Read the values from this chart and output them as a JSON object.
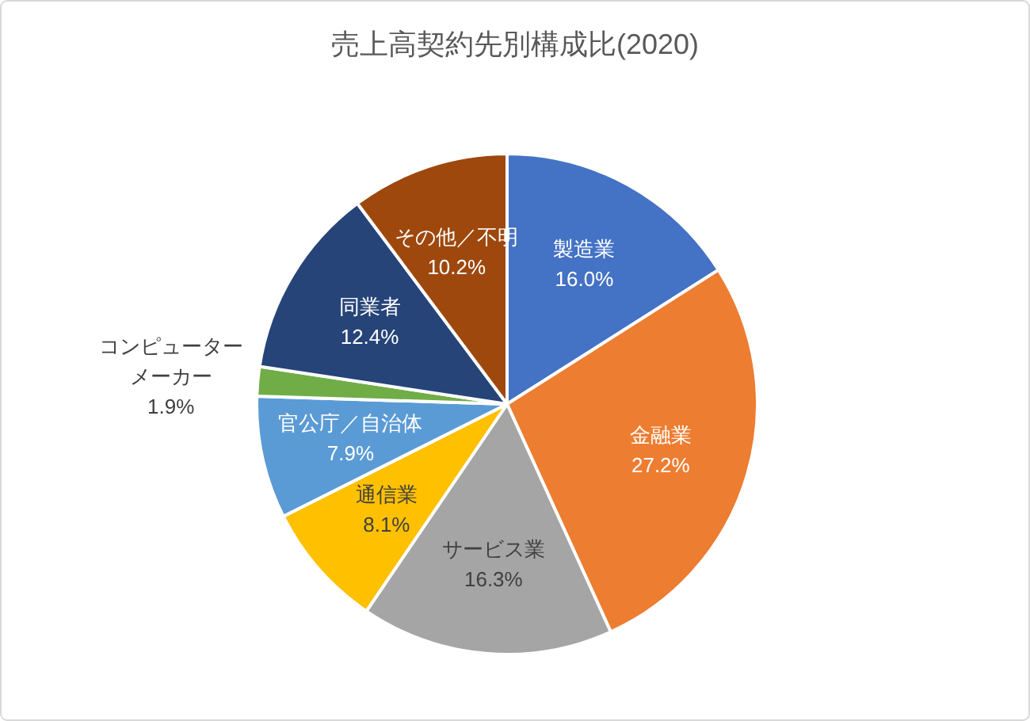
{
  "chart_data": {
    "type": "pie",
    "title": "売上高契約先別構成比(2020)",
    "categories": [
      "製造業",
      "金融業",
      "サービス業",
      "通信業",
      "官公庁／自治体",
      "コンピューターメーカー",
      "同業者",
      "その他／不明"
    ],
    "values": [
      16.0,
      27.2,
      16.3,
      8.1,
      7.9,
      1.9,
      12.4,
      10.2
    ],
    "value_labels": [
      "16.0%",
      "27.2%",
      "16.3%",
      "8.1%",
      "7.9%",
      "1.9%",
      "12.4%",
      "10.2%"
    ],
    "colors": [
      "#4472c4",
      "#ed7d31",
      "#a5a5a5",
      "#ffc000",
      "#5b9bd5",
      "#70ad47",
      "#264478",
      "#9e480e"
    ]
  }
}
